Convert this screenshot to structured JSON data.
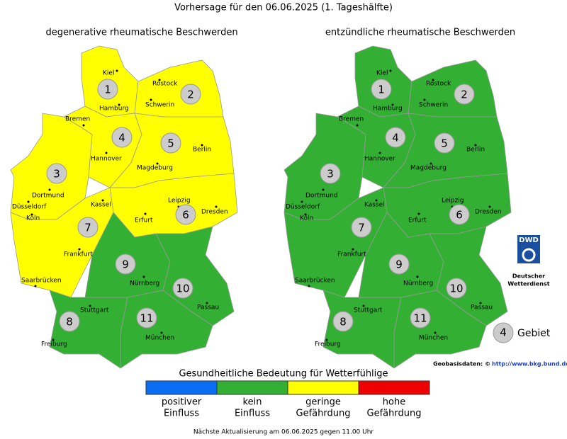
{
  "title": "Vorhersage für den 06.06.2025 (1. Tageshälfte)",
  "maps": [
    {
      "subtitle": "degenerative rheumatische Beschwerden",
      "regions": [
        {
          "label": "1",
          "level": 2
        },
        {
          "label": "2",
          "level": 2
        },
        {
          "label": "3",
          "level": 2
        },
        {
          "label": "4",
          "level": 2
        },
        {
          "label": "5",
          "level": 2
        },
        {
          "label": "6",
          "level": 2
        },
        {
          "label": "7",
          "level": 2
        },
        {
          "label": "8",
          "level": 1
        },
        {
          "label": "9",
          "level": 1
        },
        {
          "label": "10",
          "level": 1
        },
        {
          "label": "11",
          "level": 1
        }
      ]
    },
    {
      "subtitle": "entzündliche rheumatische Beschwerden",
      "regions": [
        {
          "label": "1",
          "level": 1
        },
        {
          "label": "2",
          "level": 1
        },
        {
          "label": "3",
          "level": 1
        },
        {
          "label": "4",
          "level": 1
        },
        {
          "label": "5",
          "level": 1
        },
        {
          "label": "6",
          "level": 1
        },
        {
          "label": "7",
          "level": 1
        },
        {
          "label": "8",
          "level": 1
        },
        {
          "label": "9",
          "level": 1
        },
        {
          "label": "10",
          "level": 1
        },
        {
          "label": "11",
          "level": 1
        }
      ]
    }
  ],
  "cities": [
    "Kiel",
    "Hamburg",
    "Rostock",
    "Schwerin",
    "Bremen",
    "Hannover",
    "Berlin",
    "Magdeburg",
    "Dortmund",
    "Düsseldorf",
    "Köln",
    "Kassel",
    "Leipzig",
    "Dresden",
    "Erfurt",
    "Frankfurt",
    "Saarbrücken",
    "Nürnberg",
    "Passau",
    "Stuttgart",
    "München",
    "Freiburg"
  ],
  "legend": {
    "title": "Gesundheitliche Bedeutung für Wetterfühlige",
    "items": [
      {
        "label": [
          "positiver",
          "Einfluss"
        ],
        "color": "#0a6ef5"
      },
      {
        "label": [
          "kein",
          "Einfluss"
        ],
        "color": "#33b033"
      },
      {
        "label": [
          "geringe",
          "Gefährdung"
        ],
        "color": "#ffff00"
      },
      {
        "label": [
          "hohe",
          "Gefährdung"
        ],
        "color": "#ee0000"
      }
    ]
  },
  "key": {
    "number": "4",
    "label": "Gebiet"
  },
  "logo": {
    "abbr": "DWD",
    "name": [
      "Deutscher",
      "Wetterdienst"
    ]
  },
  "source": {
    "label": "Geobasisdaten: ©",
    "link": "http://www.bkg.bund.de"
  },
  "footer": "Nächste Aktualisierung am 06.06.2025 gegen 11.00 Uhr"
}
